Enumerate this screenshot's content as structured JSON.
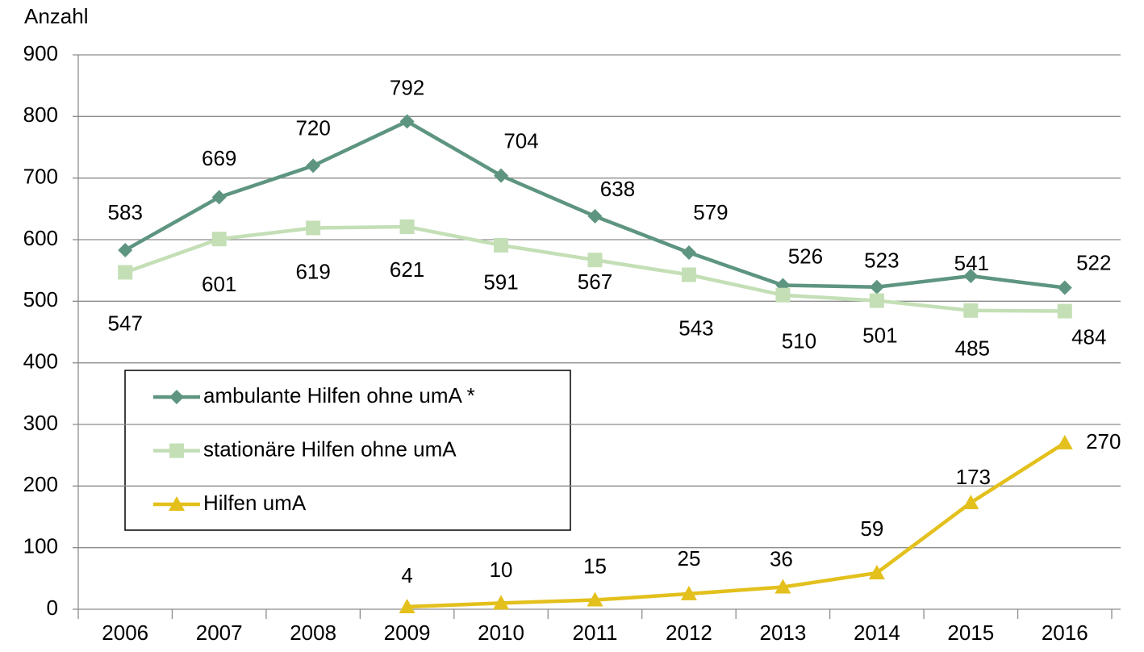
{
  "chart_data": {
    "type": "line",
    "ylabel": "Anzahl",
    "categories": [
      "2006",
      "2007",
      "2008",
      "2009",
      "2010",
      "2011",
      "2012",
      "2013",
      "2014",
      "2015",
      "2016"
    ],
    "series": [
      {
        "name": "ambulante Hilfen ohne umA *",
        "color": "#5e9580",
        "marker": "diamond",
        "values": [
          583,
          669,
          720,
          792,
          704,
          638,
          579,
          526,
          523,
          541,
          522
        ]
      },
      {
        "name": "stationäre Hilfen ohne umA",
        "color": "#c4dfb6",
        "marker": "square",
        "values": [
          547,
          601,
          619,
          621,
          591,
          567,
          543,
          510,
          501,
          485,
          484
        ]
      },
      {
        "name": "Hilfen umA",
        "color": "#e3c01c",
        "marker": "triangle",
        "values": [
          null,
          null,
          null,
          4,
          10,
          15,
          25,
          36,
          59,
          173,
          270
        ]
      }
    ],
    "ylim": [
      0,
      900
    ],
    "yticks": [
      0,
      100,
      200,
      300,
      400,
      500,
      600,
      700,
      800,
      900
    ],
    "grid": true
  }
}
